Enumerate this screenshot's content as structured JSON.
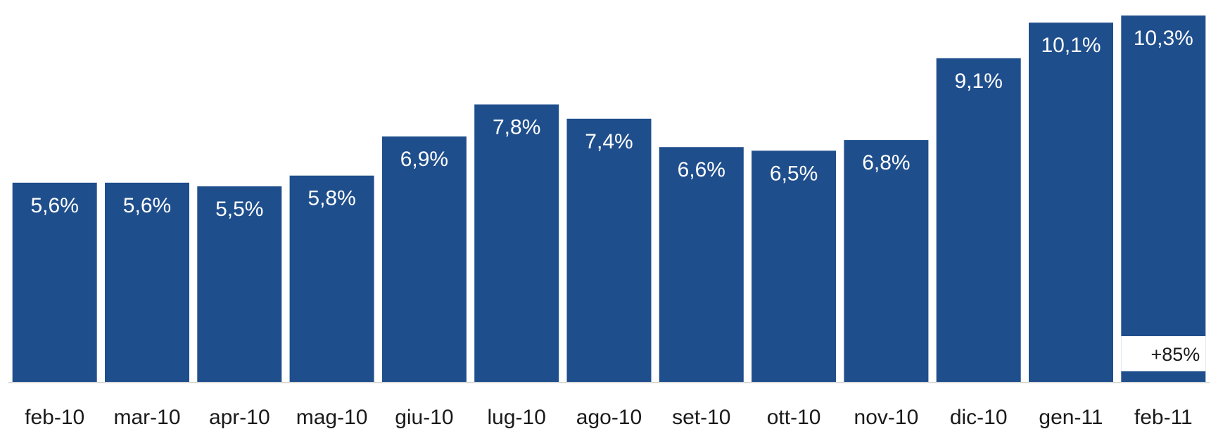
{
  "chart_data": {
    "type": "bar",
    "title": "",
    "xlabel": "",
    "ylabel": "",
    "categories": [
      "feb-10",
      "mar-10",
      "apr-10",
      "mag-10",
      "giu-10",
      "lug-10",
      "ago-10",
      "set-10",
      "ott-10",
      "nov-10",
      "dic-10",
      "gen-11",
      "feb-11"
    ],
    "values": [
      5.6,
      5.6,
      5.5,
      5.8,
      6.9,
      7.8,
      7.4,
      6.6,
      6.5,
      6.8,
      9.1,
      10.1,
      10.3
    ],
    "value_labels": [
      "5,6%",
      "5,6%",
      "5,5%",
      "5,8%",
      "6,9%",
      "7,8%",
      "7,4%",
      "6,6%",
      "6,5%",
      "6,8%",
      "9,1%",
      "10,1%",
      "10,3%"
    ],
    "unit": "%",
    "ylim": [
      0,
      10.5
    ],
    "grid": false,
    "legend": "none",
    "bar_color": "#1f4e8c",
    "annotation": {
      "category": "feb-11",
      "text": "+85%"
    }
  }
}
